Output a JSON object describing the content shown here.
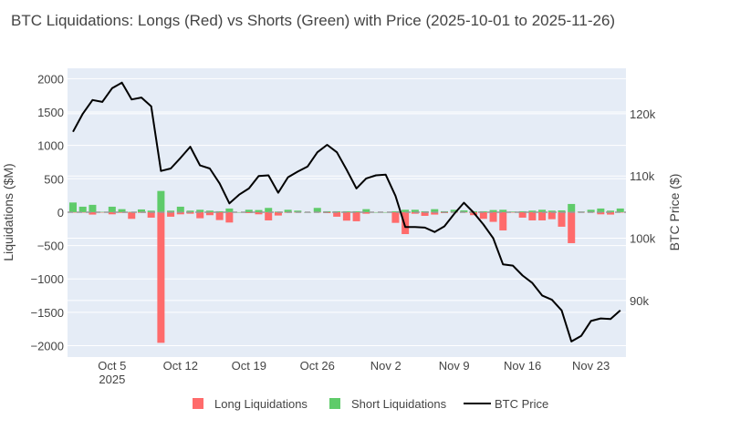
{
  "chart_data": {
    "type": "bar+line",
    "title": "BTC Liquidations: Longs (Red) vs Shorts (Green) with Price (2025-10-01 to 2025-11-26)",
    "xlabel": "",
    "ylabel": "Liquidations ($M)",
    "y2label": "BTC Price ($)",
    "start_date": "2025-10-01",
    "ylim": [
      -2170,
      2155
    ],
    "y2lim": [
      80900,
      127300
    ],
    "yticks": [
      2000,
      1500,
      1000,
      500,
      0,
      -500,
      -1000,
      -1500,
      -2000
    ],
    "ytick_labels": [
      "2000",
      "1500",
      "1000",
      "500",
      "0",
      "−500",
      "−1000",
      "−1500",
      "−2000"
    ],
    "y2ticks": [
      90000,
      100000,
      110000,
      120000
    ],
    "y2tick_labels": [
      "90k",
      "100k",
      "110k",
      "120k"
    ],
    "xticks": [
      {
        "day": 4,
        "label": "Oct 5",
        "sublabel": "2025"
      },
      {
        "day": 11,
        "label": "Oct 12"
      },
      {
        "day": 18,
        "label": "Oct 19"
      },
      {
        "day": 25,
        "label": "Oct 26"
      },
      {
        "day": 32,
        "label": "Nov 2"
      },
      {
        "day": 39,
        "label": "Nov 9"
      },
      {
        "day": 46,
        "label": "Nov 16"
      },
      {
        "day": 53,
        "label": "Nov 23"
      }
    ],
    "legend": [
      "Long Liquidations",
      "Short Liquidations",
      "BTC Price"
    ],
    "legend_position": "bottom-center",
    "colors": {
      "long": "#ff6b6b",
      "short": "#5fcb6a",
      "price": "#000000",
      "plot_bg": "#e5ecf6",
      "zero_line": "#999999"
    },
    "series": [
      {
        "name": "Long Liquidations",
        "values": [
          0,
          -5,
          -36,
          0,
          -32,
          -10,
          -100,
          -10,
          -82,
          -1957,
          -68,
          -32,
          -23,
          -91,
          -45,
          -118,
          -155,
          0,
          -14,
          -32,
          -123,
          -50,
          -9,
          -5,
          0,
          -5,
          -14,
          -68,
          -127,
          -136,
          -23,
          0,
          0,
          -160,
          -328,
          -23,
          -55,
          -36,
          -14,
          -5,
          -5,
          -45,
          -100,
          -145,
          -273,
          0,
          -82,
          -123,
          -123,
          -105,
          -218,
          -464,
          -5,
          -5,
          -32,
          -36,
          -5
        ]
      },
      {
        "name": "Short Liquidations",
        "values": [
          145,
          82,
          110,
          5,
          82,
          45,
          5,
          41,
          23,
          318,
          23,
          82,
          23,
          36,
          23,
          14,
          55,
          0,
          36,
          32,
          64,
          9,
          36,
          23,
          0,
          64,
          14,
          14,
          14,
          14,
          45,
          0,
          0,
          14,
          36,
          36,
          14,
          45,
          14,
          36,
          27,
          14,
          14,
          32,
          36,
          9,
          14,
          23,
          36,
          23,
          27,
          123,
          9,
          36,
          55,
          23,
          55
        ]
      },
      {
        "name": "BTC Price",
        "values": [
          117100,
          120000,
          122200,
          121900,
          124100,
          125000,
          122300,
          122600,
          121200,
          110800,
          111200,
          112900,
          114700,
          111700,
          111200,
          108800,
          105600,
          107000,
          108000,
          110000,
          110100,
          107300,
          109800,
          110700,
          111500,
          113800,
          115000,
          113800,
          111000,
          108000,
          109600,
          110100,
          110200,
          106800,
          101800,
          101800,
          101700,
          101000,
          101900,
          103900,
          105700,
          104100,
          102200,
          100000,
          95800,
          95600,
          94000,
          92800,
          90800,
          90100,
          88400,
          83400,
          84300,
          86700,
          87100,
          87000,
          88400
        ]
      }
    ]
  }
}
